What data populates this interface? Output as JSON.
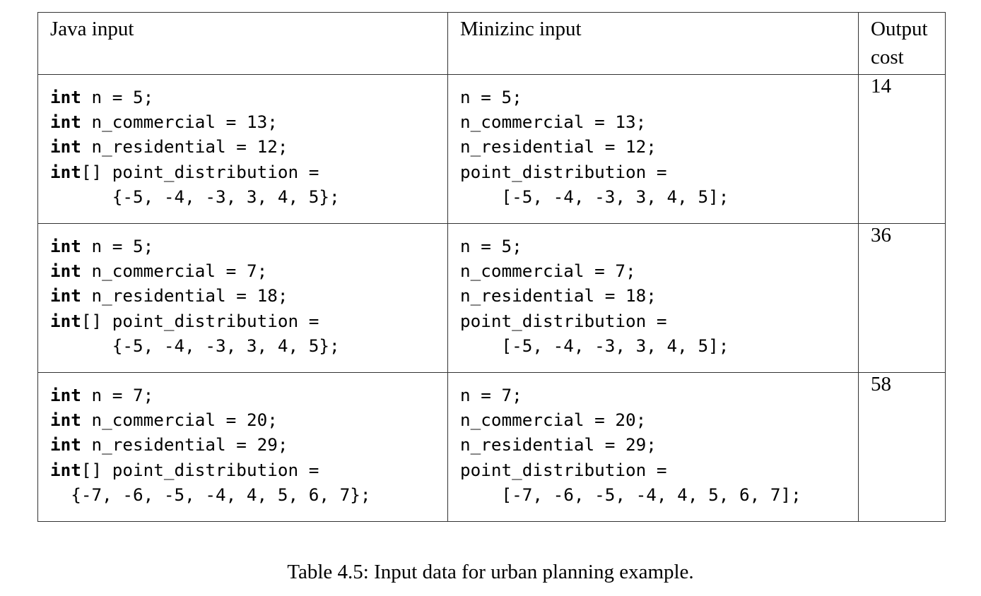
{
  "table": {
    "headers": [
      "Java input",
      "Minizinc input",
      "Output cost"
    ],
    "rows": [
      {
        "java": [
          {
            "kw": "int",
            "rest": " n = 5;"
          },
          {
            "kw": "int",
            "rest": " n_commercial = 13;"
          },
          {
            "kw": "int",
            "rest": " n_residential = 12;"
          },
          {
            "kw": "int",
            "rest": "[] point_distribution ="
          },
          {
            "kw": "",
            "rest": "      {-5, -4, -3, 3, 4, 5};"
          }
        ],
        "minizinc": [
          "n = 5;",
          "n_commercial = 13;",
          "n_residential = 12;",
          "point_distribution =",
          "    [-5, -4, -3, 3, 4, 5];"
        ],
        "cost": "14"
      },
      {
        "java": [
          {
            "kw": "int",
            "rest": " n = 5;"
          },
          {
            "kw": "int",
            "rest": " n_commercial = 7;"
          },
          {
            "kw": "int",
            "rest": " n_residential = 18;"
          },
          {
            "kw": "int",
            "rest": "[] point_distribution ="
          },
          {
            "kw": "",
            "rest": "      {-5, -4, -3, 3, 4, 5};"
          }
        ],
        "minizinc": [
          "n = 5;",
          "n_commercial = 7;",
          "n_residential = 18;",
          "point_distribution =",
          "    [-5, -4, -3, 3, 4, 5];"
        ],
        "cost": "36"
      },
      {
        "java": [
          {
            "kw": "int",
            "rest": " n = 7;"
          },
          {
            "kw": "int",
            "rest": " n_commercial = 20;"
          },
          {
            "kw": "int",
            "rest": " n_residential = 29;"
          },
          {
            "kw": "int",
            "rest": "[] point_distribution ="
          },
          {
            "kw": "",
            "rest": "  {-7, -6, -5, -4, 4, 5, 6, 7};"
          }
        ],
        "minizinc": [
          "n = 7;",
          "n_commercial = 20;",
          "n_residential = 29;",
          "point_distribution =",
          "    [-7, -6, -5, -4, 4, 5, 6, 7];"
        ],
        "cost": "58"
      }
    ]
  },
  "caption": "Table 4.5: Input data for urban planning example."
}
